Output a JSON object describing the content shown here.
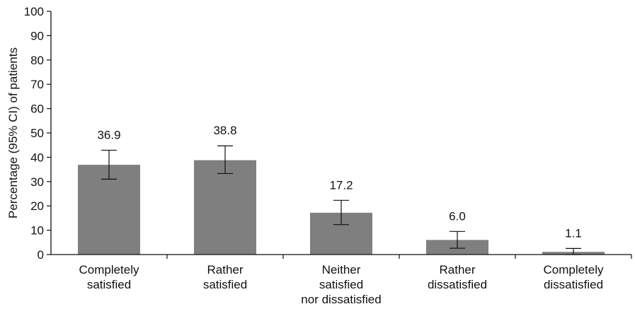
{
  "chart_data": {
    "type": "bar",
    "title": "",
    "xlabel": "",
    "ylabel": "Percentage (95% CI) of patients",
    "ylim": [
      0,
      100
    ],
    "yticks": [
      0,
      10,
      20,
      30,
      40,
      50,
      60,
      70,
      80,
      90,
      100
    ],
    "grid": false,
    "bar_color": "#7f7f7f",
    "categories": [
      [
        "Completely",
        "satisfied"
      ],
      [
        "Rather",
        "satisfied"
      ],
      [
        "Neither",
        "satisfied",
        "nor dissatisfied"
      ],
      [
        "Rather",
        "dissatisfied"
      ],
      [
        "Completely",
        "dissatisfied"
      ]
    ],
    "values": [
      36.9,
      38.8,
      17.2,
      6.0,
      1.1
    ],
    "value_labels": [
      "36.9",
      "38.8",
      "17.2",
      "6.0",
      "1.1"
    ],
    "ci_low": [
      31.0,
      33.3,
      12.3,
      2.6,
      0.0
    ],
    "ci_high": [
      42.9,
      44.7,
      22.3,
      9.5,
      2.5
    ]
  }
}
